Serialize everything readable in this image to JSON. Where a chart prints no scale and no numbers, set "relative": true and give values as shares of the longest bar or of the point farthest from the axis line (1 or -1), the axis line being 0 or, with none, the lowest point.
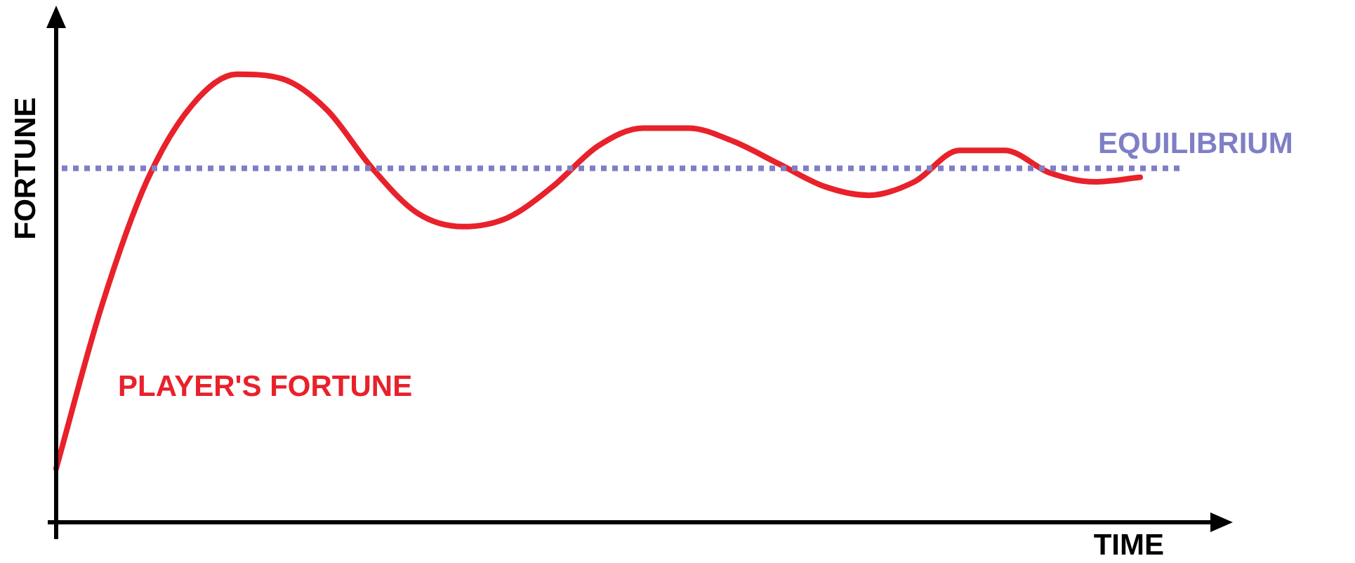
{
  "chart_data": {
    "type": "line",
    "relative": true,
    "xlabel": "TIME",
    "ylabel": "FORTUNE",
    "categories": [
      null,
      null,
      null,
      null,
      null,
      null,
      null,
      null,
      null,
      null,
      null,
      null,
      null,
      null,
      null,
      null,
      null,
      null,
      null,
      null,
      null,
      null,
      null,
      null,
      null
    ],
    "series": [
      {
        "name": "PLAYER'S FORTUNE",
        "color": "#e8212a",
        "values": [
          0.12,
          0.48,
          0.76,
          0.93,
          1.0,
          0.99,
          0.92,
          0.79,
          0.69,
          0.66,
          0.68,
          0.75,
          0.84,
          0.88,
          0.88,
          0.85,
          0.8,
          0.75,
          0.73,
          0.76,
          0.83,
          0.83,
          0.78,
          0.76,
          0.77
        ]
      }
    ],
    "ref_lines": [
      {
        "axis": "y",
        "value": 0.79,
        "label": "EQUILIBRIUM",
        "color": "#7f7fc6",
        "line_style": "dotted"
      }
    ],
    "marker": "none",
    "line_style": "solid",
    "legend": false
  }
}
